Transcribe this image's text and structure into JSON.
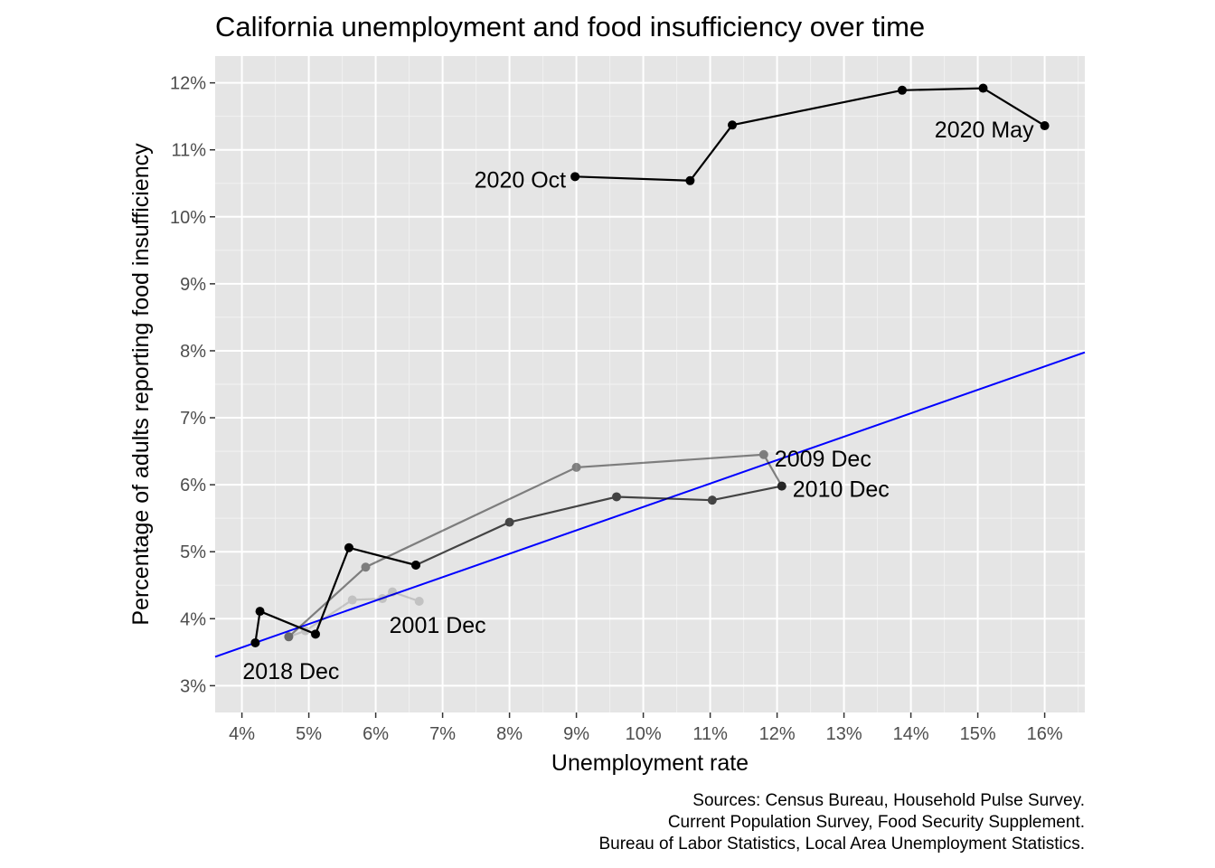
{
  "chart_data": {
    "type": "scatter",
    "title": "California unemployment and food insufficiency over time",
    "xlabel": "Unemployment rate",
    "ylabel": "Percentage of adults reporting food insufficiency",
    "xlim": [
      3.6,
      16.6
    ],
    "ylim": [
      2.6,
      12.4
    ],
    "x_ticks": [
      4,
      5,
      6,
      7,
      8,
      9,
      10,
      11,
      12,
      13,
      14,
      15,
      16
    ],
    "x_tick_labels": [
      "4%",
      "5%",
      "6%",
      "7%",
      "8%",
      "9%",
      "10%",
      "11%",
      "12%",
      "13%",
      "14%",
      "15%",
      "16%"
    ],
    "y_ticks": [
      3,
      4,
      5,
      6,
      7,
      8,
      9,
      10,
      11,
      12
    ],
    "y_tick_labels": [
      "3%",
      "4%",
      "5%",
      "6%",
      "7%",
      "8%",
      "9%",
      "10%",
      "11%",
      "12%"
    ],
    "grid": true,
    "background": "#e5e5e5",
    "series": [
      {
        "opacity": 0.15,
        "x": [
          6.65,
          6.25,
          6.1,
          5.65,
          4.95,
          4.7
        ],
        "y": [
          4.26,
          4.4,
          4.3,
          4.28,
          3.82,
          3.73
        ]
      },
      {
        "opacity": 0.45,
        "x": [
          4.7,
          5.85,
          9.0,
          11.8,
          12.07
        ],
        "y": [
          3.73,
          4.77,
          6.26,
          6.45,
          5.98
        ]
      },
      {
        "opacity": 0.7,
        "x": [
          12.07,
          11.03,
          9.6,
          8.0,
          6.6
        ],
        "y": [
          5.98,
          5.77,
          5.82,
          5.44,
          4.8
        ]
      },
      {
        "opacity": 1.0,
        "x": [
          6.6,
          5.6,
          5.1,
          4.27,
          4.2
        ],
        "y": [
          4.8,
          5.06,
          3.77,
          4.11,
          3.64
        ]
      },
      {
        "opacity": 1.0,
        "x": [
          16.0,
          15.08,
          13.87,
          11.33,
          10.7,
          8.98
        ],
        "y": [
          11.36,
          11.92,
          11.89,
          11.37,
          10.54,
          10.6
        ]
      }
    ],
    "trend_line": {
      "color": "#0000ff",
      "intercept": 2.173,
      "slope": 0.3496
    },
    "annotations": [
      {
        "text": "2020 May",
        "x": 16.0,
        "y": 11.36,
        "anchor": "end"
      },
      {
        "text": "2020 Oct",
        "x": 8.98,
        "y": 10.6,
        "anchor": "end"
      },
      {
        "text": "2009 Dec",
        "x": 11.8,
        "y": 6.45,
        "anchor": "start"
      },
      {
        "text": "2010 Dec",
        "x": 12.07,
        "y": 5.98,
        "anchor": "start"
      },
      {
        "text": "2001 Dec",
        "x": 6.65,
        "y": 4.26,
        "anchor": "end"
      },
      {
        "text": "2018 Dec",
        "x": 4.2,
        "y": 3.64,
        "anchor": "start"
      }
    ],
    "caption": [
      "Sources: Census Bureau, Household Pulse Survey.",
      "Current Population Survey, Food Security Supplement.",
      "Bureau of Labor Statistics, Local Area Unemployment Statistics."
    ]
  }
}
